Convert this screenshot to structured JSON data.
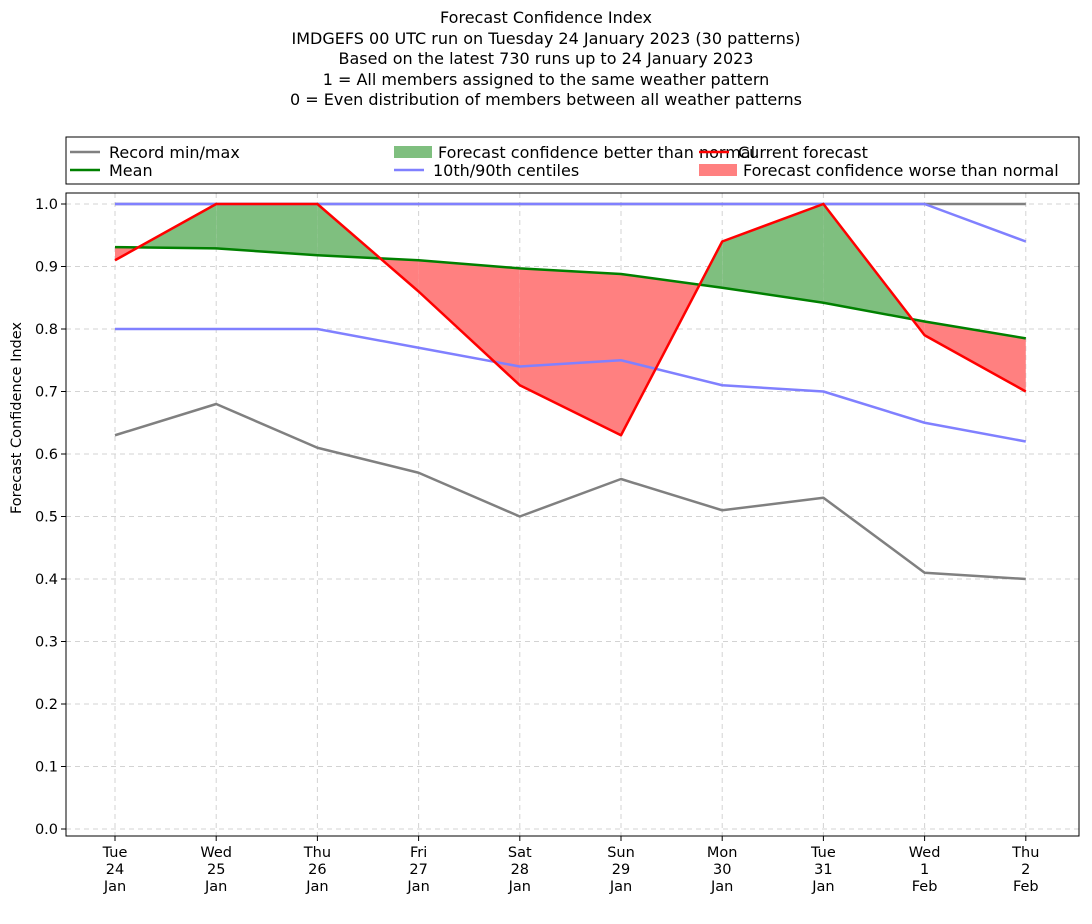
{
  "chart_data": {
    "type": "line",
    "title_lines": [
      "Forecast Confidence Index",
      "IMDGEFS 00 UTC run on Tuesday 24 January 2023 (30 patterns)",
      "Based on the latest 730 runs up to 24 January 2023",
      "1 = All members assigned to the same weather pattern",
      "0 = Even distribution of members between all weather patterns"
    ],
    "ylabel": "Forecast Confidence Index",
    "ylim": [
      0.0,
      1.0
    ],
    "yticks": [
      "0.0",
      "0.1",
      "0.2",
      "0.3",
      "0.4",
      "0.5",
      "0.6",
      "0.7",
      "0.8",
      "0.9",
      "1.0"
    ],
    "ytick_values": [
      0.0,
      0.1,
      0.2,
      0.3,
      0.4,
      0.5,
      0.6,
      0.7,
      0.8,
      0.9,
      1.0
    ],
    "categories": [
      [
        "Tue",
        "24",
        "Jan"
      ],
      [
        "Wed",
        "25",
        "Jan"
      ],
      [
        "Thu",
        "26",
        "Jan"
      ],
      [
        "Fri",
        "27",
        "Jan"
      ],
      [
        "Sat",
        "28",
        "Jan"
      ],
      [
        "Sun",
        "29",
        "Jan"
      ],
      [
        "Mon",
        "30",
        "Jan"
      ],
      [
        "Tue",
        "31",
        "Jan"
      ],
      [
        "Wed",
        "1",
        "Feb"
      ],
      [
        "Thu",
        "2",
        "Feb"
      ]
    ],
    "grid": true,
    "legend_placement": "top, above plot, 3 columns",
    "legend": [
      {
        "label": "Record min/max",
        "kind": "line",
        "color": "#808080"
      },
      {
        "label": "Mean",
        "kind": "line",
        "color": "#008000"
      },
      {
        "label": "Forecast confidence better than normal",
        "kind": "fill",
        "color": "#7fbf7f"
      },
      {
        "label": "10th/90th centiles",
        "kind": "line",
        "color": "#8080ff"
      },
      {
        "label": "Current forecast",
        "kind": "line",
        "color": "#ff0000"
      },
      {
        "label": "Forecast confidence worse than normal",
        "kind": "fill",
        "color": "#ff8080"
      }
    ],
    "series": {
      "record_max": [
        1.0,
        1.0,
        1.0,
        1.0,
        1.0,
        1.0,
        1.0,
        1.0,
        1.0,
        1.0
      ],
      "record_min": [
        0.63,
        0.68,
        0.61,
        0.57,
        0.5,
        0.56,
        0.51,
        0.53,
        0.41,
        0.4
      ],
      "p90": [
        1.0,
        1.0,
        1.0,
        1.0,
        1.0,
        1.0,
        1.0,
        1.0,
        1.0,
        0.94
      ],
      "p10": [
        0.8,
        0.8,
        0.8,
        0.77,
        0.74,
        0.75,
        0.71,
        0.7,
        0.65,
        0.62
      ],
      "mean": [
        0.931,
        0.929,
        0.918,
        0.91,
        0.897,
        0.888,
        0.866,
        0.842,
        0.812,
        0.785
      ],
      "current": [
        0.91,
        1.0,
        1.0,
        0.86,
        0.71,
        0.63,
        0.94,
        1.0,
        0.79,
        0.7
      ]
    },
    "colors": {
      "record": "#808080",
      "centiles": "#8080ff",
      "mean": "#008000",
      "current": "#ff0000",
      "better_fill": "#7fbf7f",
      "worse_fill": "#ff8080"
    }
  }
}
